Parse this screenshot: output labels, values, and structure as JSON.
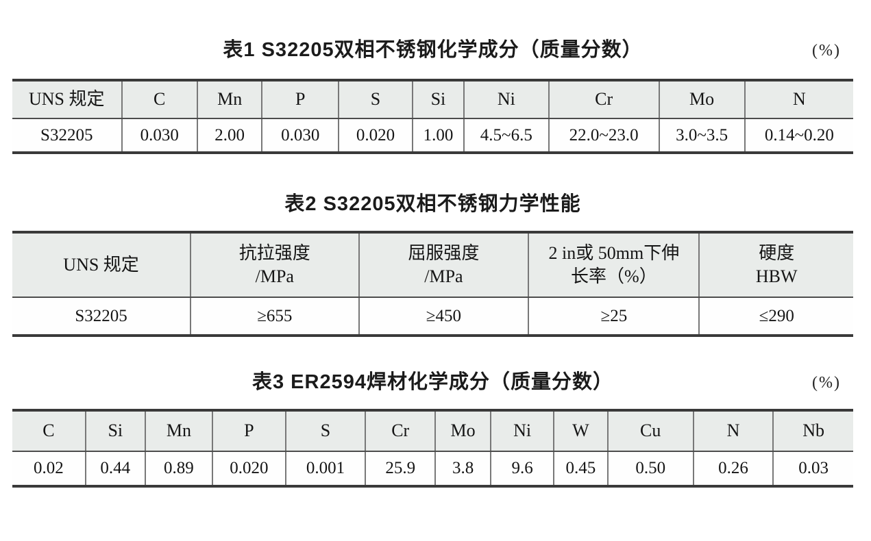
{
  "document": {
    "tables": [
      {
        "id": "table-1",
        "title": "表1 S32205双相不锈钢化学成分（质量分数）",
        "unit": "(%)",
        "headers": [
          "UNS 规定",
          "C",
          "Mn",
          "P",
          "S",
          "Si",
          "Ni",
          "Cr",
          "Mo",
          "N"
        ],
        "rows": [
          [
            "S32205",
            "0.030",
            "2.00",
            "0.030",
            "0.020",
            "1.00",
            "4.5~6.5",
            "22.0~23.0",
            "3.0~3.5",
            "0.14~0.20"
          ]
        ]
      },
      {
        "id": "table-2",
        "title": "表2 S32205双相不锈钢力学性能",
        "unit": "",
        "headers": [
          "UNS 规定",
          "抗拉强度\n/MPa",
          "屈服强度\n/MPa",
          "2 in或 50mm下伸\n长率（%）",
          "硬度\nHBW"
        ],
        "rows": [
          [
            "S32205",
            "≥655",
            "≥450",
            "≥25",
            "≤290"
          ]
        ]
      },
      {
        "id": "table-3",
        "title": "表3 ER2594焊材化学成分（质量分数）",
        "unit": "(%)",
        "headers": [
          "C",
          "Si",
          "Mn",
          "P",
          "S",
          "Cr",
          "Mo",
          "Ni",
          "W",
          "Cu",
          "N",
          "Nb"
        ],
        "rows": [
          [
            "0.02",
            "0.44",
            "0.89",
            "0.020",
            "0.001",
            "25.9",
            "3.8",
            "9.6",
            "0.45",
            "0.50",
            "0.26",
            "0.03"
          ]
        ]
      }
    ]
  }
}
